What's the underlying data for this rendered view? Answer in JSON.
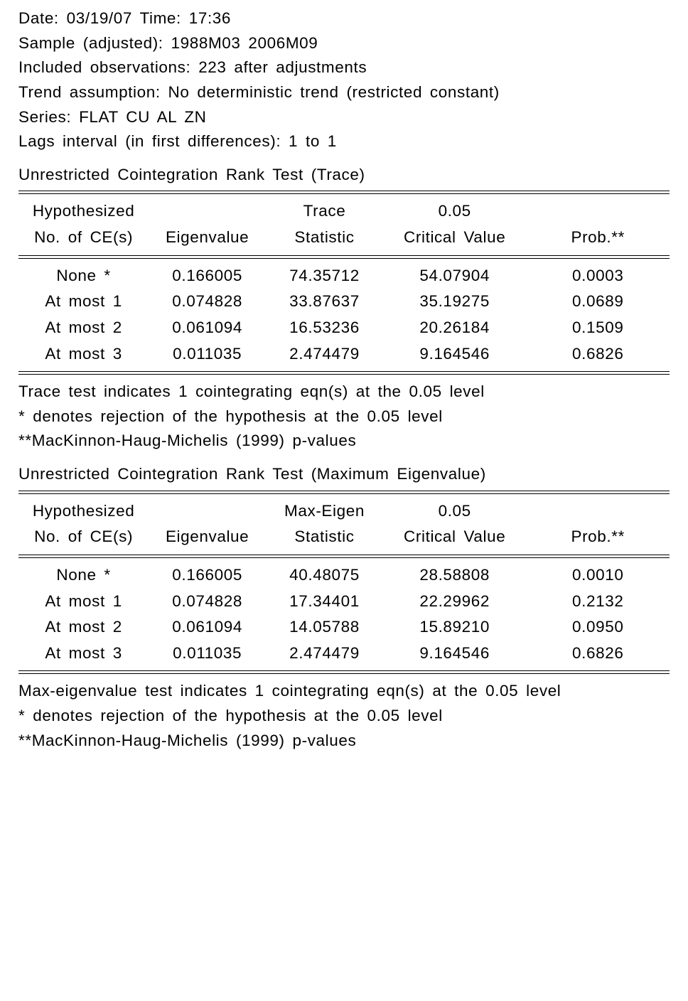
{
  "header": {
    "date_time": "Date: 03/19/07   Time: 17:36",
    "sample": "Sample (adjusted): 1988M03 2006M09",
    "observations": "Included observations: 223 after adjustments",
    "trend": "Trend assumption: No deterministic trend (restricted constant)",
    "series": "Series: FLAT CU AL ZN",
    "lags": "Lags interval (in first differences): 1 to 1"
  },
  "trace": {
    "title": "Unrestricted Cointegration Rank Test (Trace)",
    "cols": {
      "hyp_r1": "Hypothesized",
      "hyp_r2": "No. of CE(s)",
      "eigen_r1": "",
      "eigen_r2": "Eigenvalue",
      "stat_r1": "Trace",
      "stat_r2": "Statistic",
      "crit_r1": "0.05",
      "crit_r2": "Critical Value",
      "prob_r1": "",
      "prob_r2": "Prob.**"
    },
    "rows": [
      {
        "hyp": "None *",
        "eigen": "0.166005",
        "stat": "74.35712",
        "crit": "54.07904",
        "prob": "0.0003"
      },
      {
        "hyp": "At most 1",
        "eigen": "0.074828",
        "stat": "33.87637",
        "crit": "35.19275",
        "prob": "0.0689"
      },
      {
        "hyp": "At most 2",
        "eigen": "0.061094",
        "stat": "16.53236",
        "crit": "20.26184",
        "prob": "0.1509"
      },
      {
        "hyp": "At most 3",
        "eigen": "0.011035",
        "stat": "2.474479",
        "crit": "9.164546",
        "prob": "0.6826"
      }
    ],
    "notes": [
      "Trace test indicates 1 cointegrating eqn(s) at the 0.05 level",
      "* denotes rejection of the hypothesis at the 0.05 level",
      "**MacKinnon-Haug-Michelis (1999) p-values"
    ]
  },
  "maxeigen": {
    "title": "Unrestricted Cointegration Rank Test (Maximum Eigenvalue)",
    "cols": {
      "hyp_r1": "Hypothesized",
      "hyp_r2": "No. of CE(s)",
      "eigen_r1": "",
      "eigen_r2": "Eigenvalue",
      "stat_r1": "Max-Eigen",
      "stat_r2": "Statistic",
      "crit_r1": "0.05",
      "crit_r2": "Critical Value",
      "prob_r1": "",
      "prob_r2": "Prob.**"
    },
    "rows": [
      {
        "hyp": "None *",
        "eigen": "0.166005",
        "stat": "40.48075",
        "crit": "28.58808",
        "prob": "0.0010"
      },
      {
        "hyp": "At most 1",
        "eigen": "0.074828",
        "stat": "17.34401",
        "crit": "22.29962",
        "prob": "0.2132"
      },
      {
        "hyp": "At most 2",
        "eigen": "0.061094",
        "stat": "14.05788",
        "crit": "15.89210",
        "prob": "0.0950"
      },
      {
        "hyp": "At most 3",
        "eigen": "0.011035",
        "stat": "2.474479",
        "crit": "9.164546",
        "prob": "0.6826"
      }
    ],
    "notes": [
      "Max-eigenvalue test indicates 1 cointegrating eqn(s) at the 0.05 level",
      "* denotes rejection of the hypothesis at the 0.05 level",
      "**MacKinnon-Haug-Michelis (1999) p-values"
    ]
  }
}
